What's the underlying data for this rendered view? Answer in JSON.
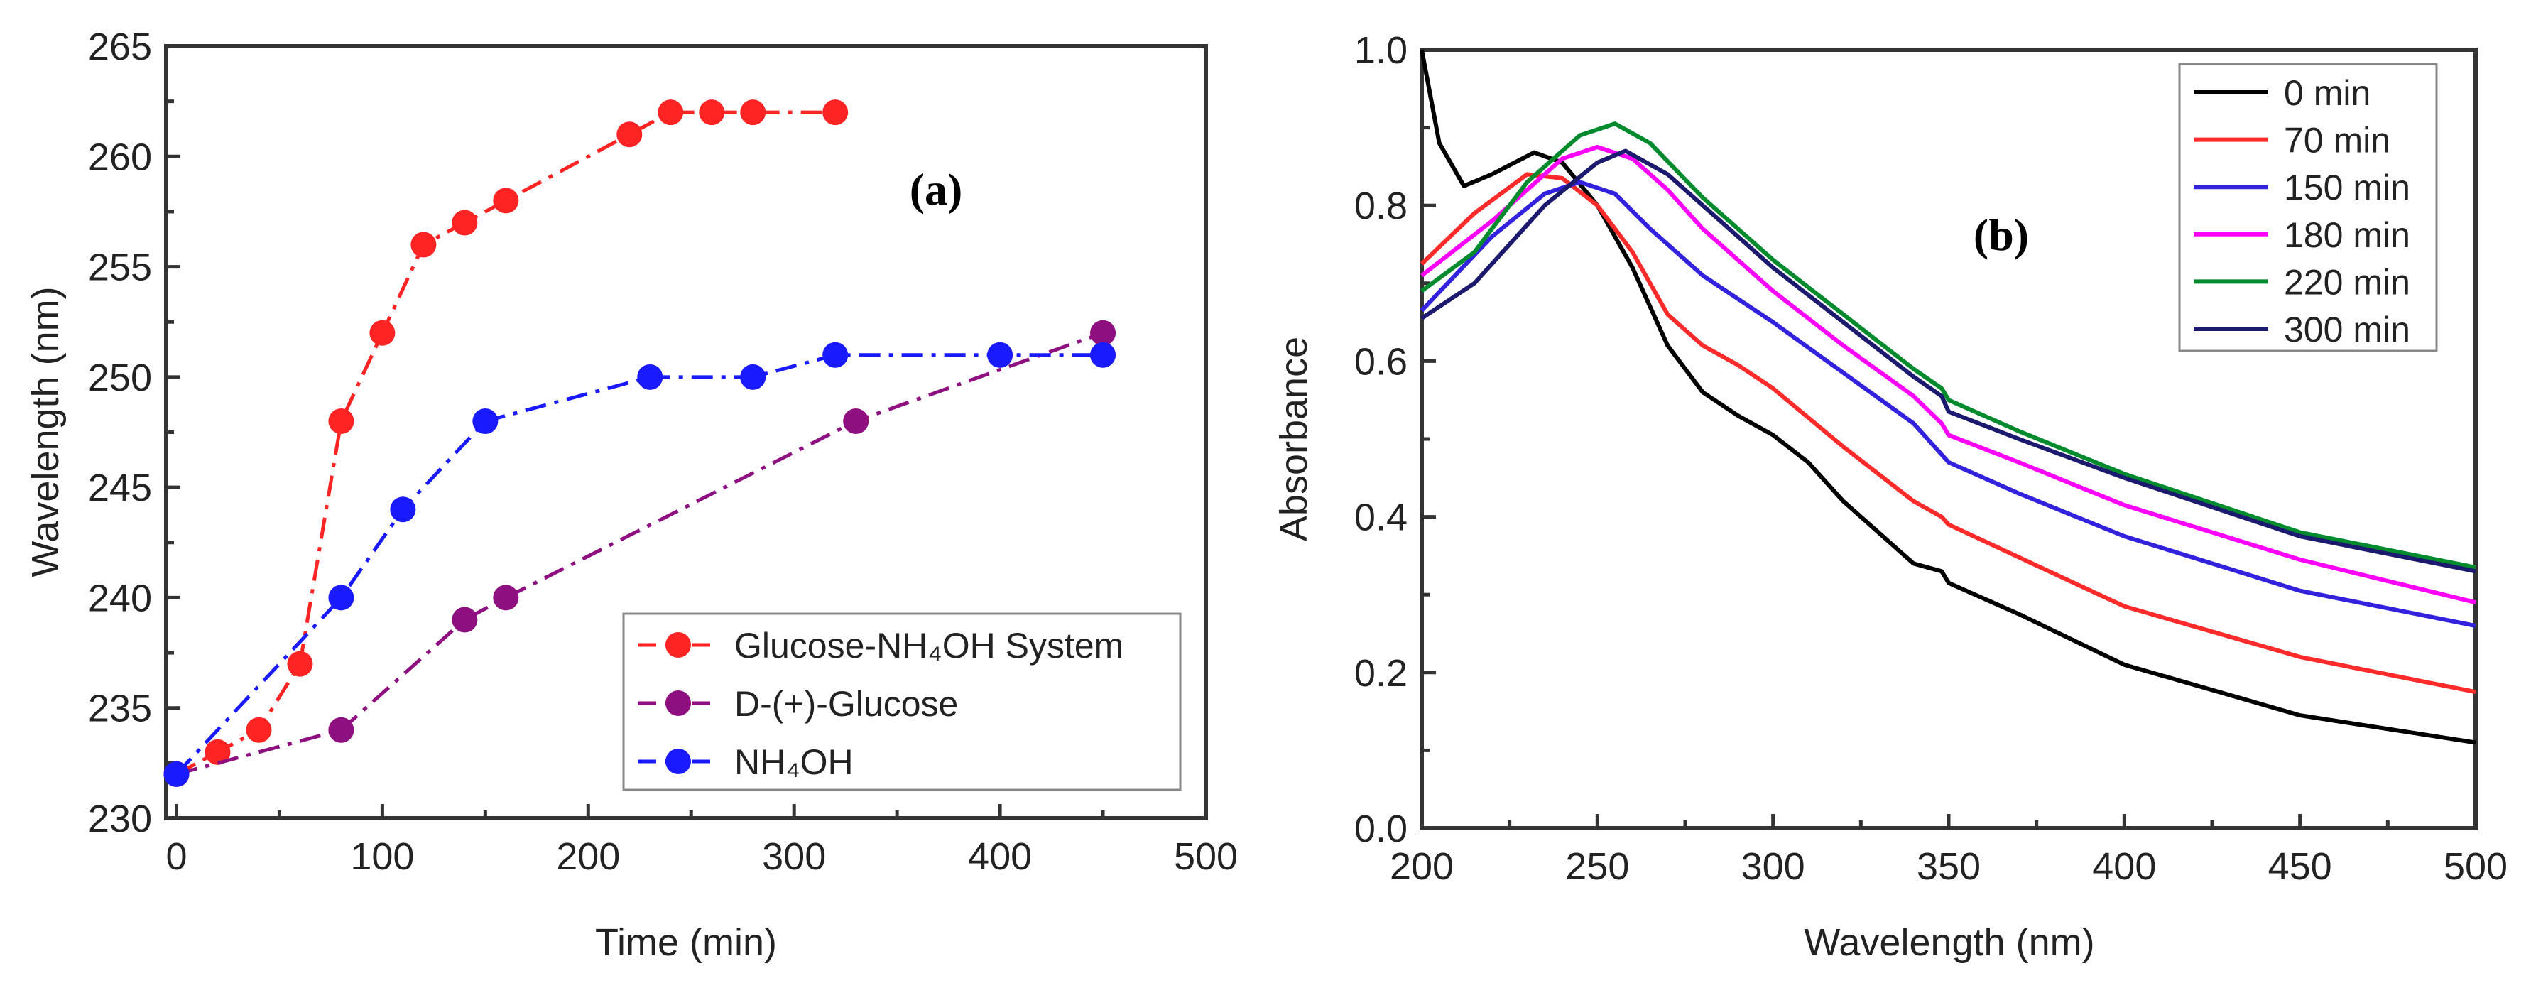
{
  "chart_data": [
    {
      "panel_label": "(a)",
      "type": "line",
      "xlabel": "Time (min)",
      "ylabel": "Wavelength (nm)",
      "xlim": [
        -5,
        500
      ],
      "ylim": [
        230,
        265
      ],
      "xticks": [
        0,
        100,
        200,
        300,
        400,
        500
      ],
      "yticks": [
        230,
        235,
        240,
        245,
        250,
        255,
        260,
        265
      ],
      "grid": false,
      "legend_position": "bottom-right",
      "series": [
        {
          "name": "Glucose-NH₄OH System",
          "color": "#ff2424",
          "x": [
            0,
            20,
            40,
            60,
            80,
            100,
            120,
            140,
            160,
            220,
            240,
            260,
            280,
            320
          ],
          "y": [
            232,
            233,
            234,
            237,
            248,
            252,
            256,
            257,
            258,
            261,
            262,
            262,
            262,
            262
          ]
        },
        {
          "name": "D-(+)-Glucose",
          "color": "#8e0f80",
          "x": [
            0,
            80,
            140,
            160,
            330,
            450
          ],
          "y": [
            232,
            234,
            239,
            240,
            248,
            252
          ]
        },
        {
          "name": "NH₄OH",
          "color": "#1a1aff",
          "x": [
            0,
            80,
            110,
            150,
            230,
            280,
            320,
            400,
            450
          ],
          "y": [
            232,
            240,
            244,
            248,
            250,
            250,
            251,
            251,
            251
          ]
        }
      ]
    },
    {
      "panel_label": "(b)",
      "type": "line",
      "xlabel": "Wavelength (nm)",
      "ylabel": "Absorbance",
      "xlim": [
        200,
        500
      ],
      "ylim": [
        0.0,
        1.0
      ],
      "xticks": [
        200,
        250,
        300,
        350,
        400,
        450,
        500
      ],
      "yticks": [
        "0.0",
        "0.2",
        "0.4",
        "0.6",
        "0.8",
        "1.0"
      ],
      "grid": false,
      "legend_position": "top-right",
      "series": [
        {
          "name": "0 min",
          "color": "#000000",
          "x": [
            200,
            205,
            212,
            220,
            232,
            240,
            250,
            260,
            270,
            280,
            290,
            300,
            310,
            320,
            330,
            340,
            348,
            350,
            370,
            400,
            450,
            500
          ],
          "y": [
            1.0,
            0.88,
            0.825,
            0.84,
            0.868,
            0.855,
            0.8,
            0.72,
            0.62,
            0.56,
            0.53,
            0.505,
            0.47,
            0.42,
            0.38,
            0.34,
            0.33,
            0.315,
            0.275,
            0.21,
            0.145,
            0.11
          ]
        },
        {
          "name": "70 min",
          "color": "#ff2a2a",
          "x": [
            200,
            215,
            230,
            240,
            250,
            260,
            270,
            280,
            290,
            300,
            320,
            340,
            348,
            350,
            400,
            450,
            500
          ],
          "y": [
            0.725,
            0.79,
            0.84,
            0.835,
            0.8,
            0.74,
            0.66,
            0.62,
            0.595,
            0.565,
            0.49,
            0.42,
            0.4,
            0.39,
            0.285,
            0.22,
            0.175
          ]
        },
        {
          "name": "150 min",
          "color": "#3322dd",
          "x": [
            200,
            220,
            235,
            245,
            255,
            265,
            280,
            300,
            320,
            340,
            348,
            350,
            370,
            400,
            450,
            500
          ],
          "y": [
            0.665,
            0.76,
            0.815,
            0.83,
            0.815,
            0.77,
            0.71,
            0.65,
            0.585,
            0.52,
            0.48,
            0.47,
            0.43,
            0.375,
            0.305,
            0.26
          ]
        },
        {
          "name": "180 min",
          "color": "#ff00ff",
          "x": [
            200,
            220,
            240,
            250,
            260,
            270,
            280,
            300,
            320,
            340,
            348,
            350,
            370,
            400,
            450,
            500
          ],
          "y": [
            0.71,
            0.78,
            0.86,
            0.875,
            0.86,
            0.82,
            0.77,
            0.69,
            0.62,
            0.555,
            0.52,
            0.505,
            0.47,
            0.415,
            0.345,
            0.29
          ]
        },
        {
          "name": "220 min",
          "color": "#008a2e",
          "x": [
            200,
            215,
            230,
            245,
            255,
            265,
            280,
            300,
            320,
            340,
            348,
            350,
            370,
            400,
            450,
            500
          ],
          "y": [
            0.69,
            0.74,
            0.83,
            0.89,
            0.905,
            0.88,
            0.81,
            0.73,
            0.66,
            0.59,
            0.565,
            0.55,
            0.51,
            0.455,
            0.38,
            0.335
          ]
        },
        {
          "name": "300 min",
          "color": "#1c1a6e",
          "x": [
            200,
            215,
            235,
            250,
            258,
            270,
            280,
            300,
            320,
            340,
            348,
            350,
            370,
            400,
            450,
            500
          ],
          "y": [
            0.655,
            0.7,
            0.8,
            0.855,
            0.87,
            0.84,
            0.8,
            0.72,
            0.65,
            0.58,
            0.555,
            0.535,
            0.5,
            0.45,
            0.375,
            0.33
          ]
        }
      ]
    }
  ]
}
